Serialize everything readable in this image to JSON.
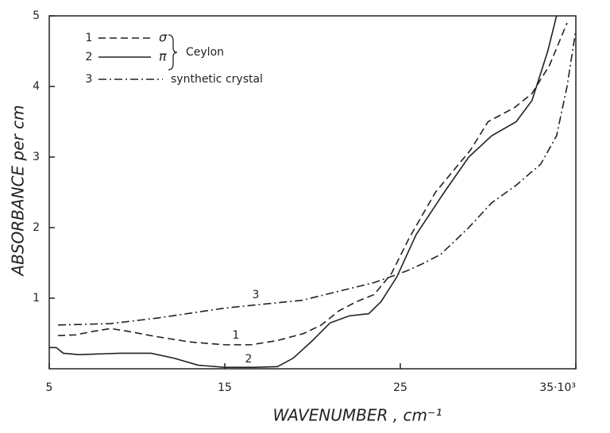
{
  "chart_data": {
    "type": "line",
    "xlabel": "WAVENUMBER ,   cm⁻¹",
    "ylabel": "ABSORBANCE  per cm",
    "xlim": [
      5,
      35
    ],
    "ylim": [
      0,
      5
    ],
    "xticks": [
      5,
      15,
      25,
      {
        "value": 35,
        "label": "35·10³"
      }
    ],
    "yticks": [
      1,
      2,
      3,
      4,
      5
    ],
    "legend_group": "Ceylon",
    "series": [
      {
        "name": "σ",
        "number": "1",
        "dash": "dashed",
        "color": "#222",
        "x": [
          5.5,
          6.5,
          7.5,
          8.5,
          9.5,
          11,
          13,
          15,
          16.5,
          18,
          19.5,
          20.5,
          21.5,
          22.5,
          23.5,
          24.5,
          25.5,
          27,
          29,
          30,
          31.5,
          32.5,
          33.5,
          34.5
        ],
        "values": [
          0.47,
          0.48,
          0.53,
          0.57,
          0.53,
          0.46,
          0.38,
          0.34,
          0.34,
          0.4,
          0.5,
          0.62,
          0.82,
          0.95,
          1.05,
          1.35,
          1.85,
          2.5,
          3.1,
          3.5,
          3.7,
          3.9,
          4.3,
          4.9
        ]
      },
      {
        "name": "π",
        "number": "2",
        "dash": "solid",
        "color": "#222",
        "x": [
          5,
          5.4,
          5.8,
          6.7,
          9,
          10.8,
          12.1,
          13.5,
          15,
          16.7,
          18,
          18.9,
          20,
          21,
          22.1,
          23.2,
          23.9,
          24.8,
          25.9,
          27.5,
          28.9,
          30.2,
          31.6,
          32.5,
          33.4,
          33.9
        ],
        "values": [
          0.3,
          0.3,
          0.22,
          0.2,
          0.22,
          0.22,
          0.15,
          0.05,
          0.02,
          0.02,
          0.03,
          0.15,
          0.4,
          0.65,
          0.75,
          0.78,
          0.95,
          1.3,
          1.9,
          2.5,
          3.0,
          3.3,
          3.5,
          3.8,
          4.5,
          5.0
        ]
      },
      {
        "name": "synthetic crystal",
        "number": "3",
        "dash": "dashdot",
        "color": "#222",
        "x": [
          5.5,
          8.5,
          11.2,
          15,
          19.4,
          21.2,
          23.5,
          25.3,
          26.2,
          27.3,
          28.9,
          30.2,
          31.6,
          33,
          33.9,
          34.5,
          35
        ],
        "values": [
          0.62,
          0.64,
          0.72,
          0.86,
          0.97,
          1.08,
          1.22,
          1.38,
          1.48,
          1.62,
          2.0,
          2.35,
          2.6,
          2.9,
          3.3,
          4.0,
          4.8
        ]
      }
    ]
  }
}
